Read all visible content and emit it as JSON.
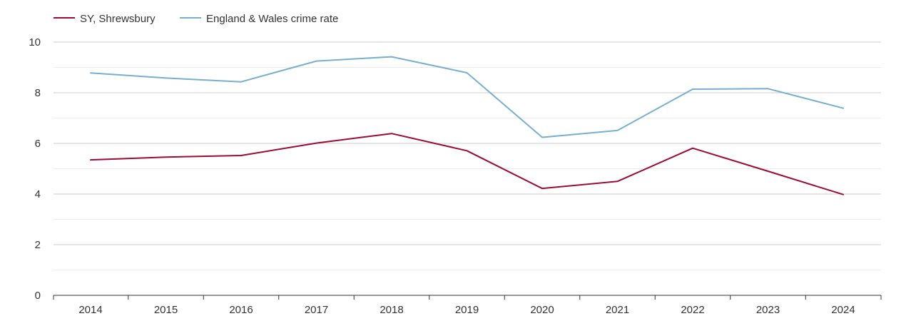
{
  "chart_data": {
    "type": "line",
    "title": "",
    "xlabel": "",
    "ylabel": "",
    "x": [
      "2014",
      "2015",
      "2016",
      "2017",
      "2018",
      "2019",
      "2020",
      "2021",
      "2022",
      "2023",
      "2024"
    ],
    "ylim": [
      0,
      10
    ],
    "yticks": [
      "0",
      "2",
      "4",
      "6",
      "8",
      "10"
    ],
    "grid": true,
    "legend_position": "top-left",
    "series": [
      {
        "name": "SY, Shrewsbury",
        "color": "#9b0b35",
        "values": [
          5.35,
          5.46,
          5.52,
          6.01,
          6.39,
          5.71,
          4.22,
          4.5,
          5.81,
          4.9,
          3.98
        ]
      },
      {
        "name": "England & Wales crime rate",
        "color": "#78afcf",
        "values": [
          8.78,
          8.58,
          8.43,
          9.25,
          9.42,
          8.79,
          6.24,
          6.51,
          8.14,
          8.16,
          7.39
        ]
      }
    ]
  }
}
